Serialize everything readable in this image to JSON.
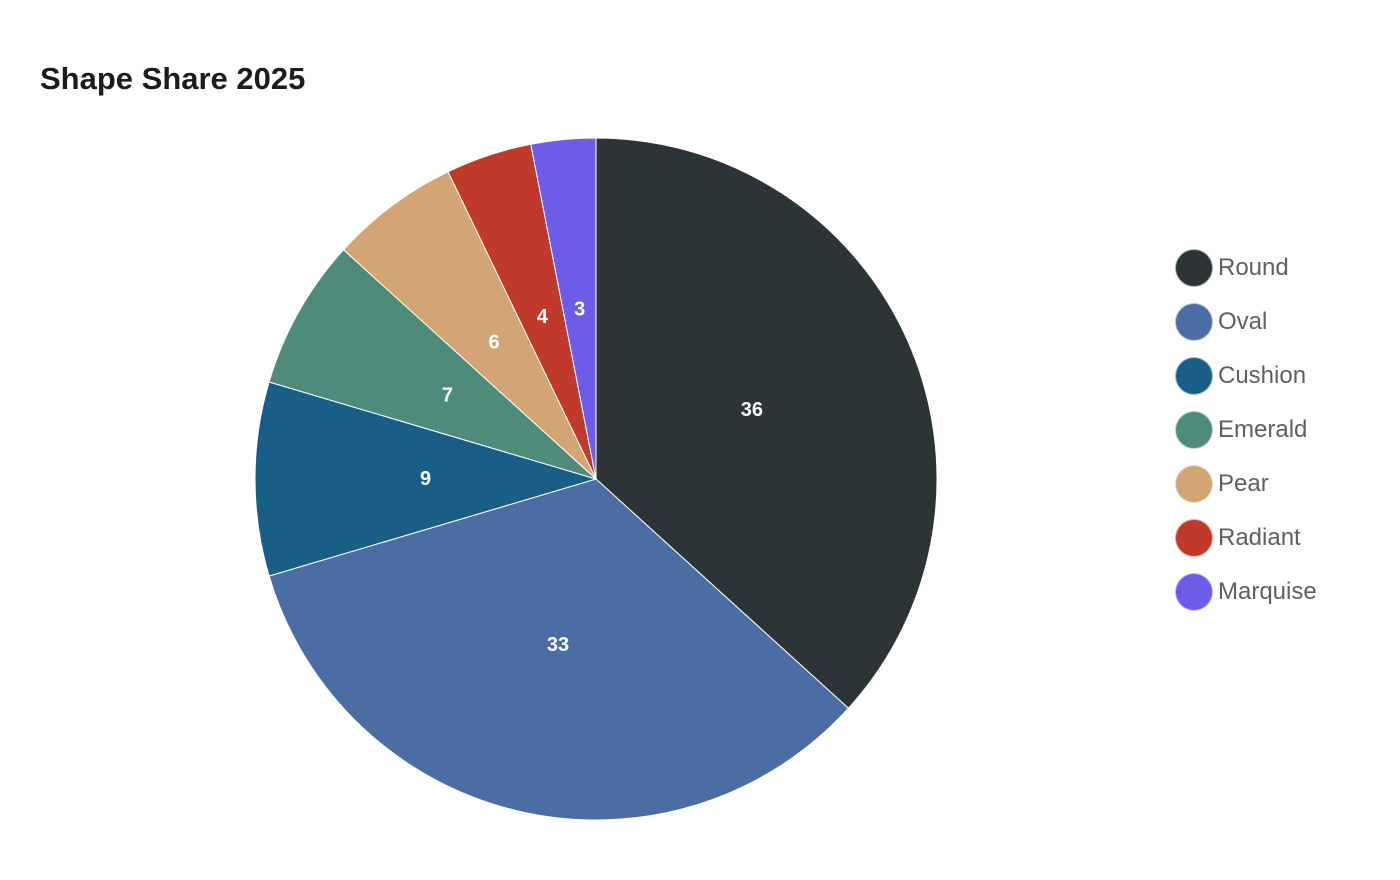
{
  "chart_data": {
    "type": "pie",
    "title": "Shape Share 2025",
    "categories": [
      "Round",
      "Oval",
      "Cushion",
      "Emerald",
      "Pear",
      "Radiant",
      "Marquise"
    ],
    "values": [
      36,
      33,
      9,
      7,
      6,
      4,
      3
    ],
    "value_labels": [
      "36",
      "33",
      "9",
      "7",
      "6",
      "4",
      "3"
    ],
    "colors": [
      "#2d3436",
      "#4a6da3",
      "#185e86",
      "#4f8b7a",
      "#d3a474",
      "#c0392b",
      "#6c5ce7"
    ],
    "legend_placement": "right",
    "start_angle": "12 o'clock",
    "direction": "clockwise"
  }
}
